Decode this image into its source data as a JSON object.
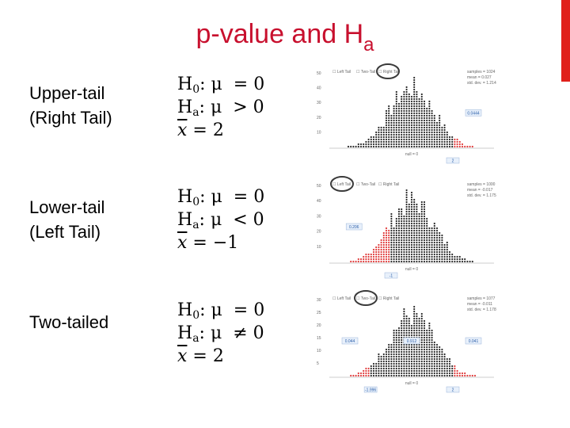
{
  "title": {
    "main": "p-value and H",
    "sub": "a"
  },
  "colors": {
    "title": "#c8102e",
    "accent_bar": "#e0201b",
    "dots_dark": "#2b2b2b",
    "dots_red": "#e03b3b",
    "badge": "#2a5ea8"
  },
  "rows": [
    {
      "label_line1": "Upper-tail",
      "label_line2": "(Right Tail)",
      "h0": {
        "prefix": "H",
        "sub": "0",
        "rel": ": μ  = 0"
      },
      "ha": {
        "prefix": "H",
        "sub": "a",
        "rel": ": μ  > 0"
      },
      "xbar": {
        "rel": " = 2"
      },
      "plot": {
        "options": [
          "Left Tail",
          "Two-Tail",
          "Right Tail"
        ],
        "selected": "Right Tail",
        "stats": [
          "samples = 1024",
          "mean = 0.027",
          "std. dev. = 1.214"
        ],
        "tail": "right",
        "cutoffs": [
          2
        ],
        "cutoff_labels": [
          "2"
        ],
        "pvalue_labels": [
          "0.0444"
        ],
        "yticks": [
          "50",
          "40",
          "30",
          "20",
          "10"
        ],
        "xaxis_label": "null = 0"
      }
    },
    {
      "label_line1": "Lower-tail",
      "label_line2": "(Left Tail)",
      "h0": {
        "prefix": "H",
        "sub": "0",
        "rel": ": μ  = 0"
      },
      "ha": {
        "prefix": "H",
        "sub": "a",
        "rel": ": μ  < 0"
      },
      "xbar": {
        "rel": " = −1"
      },
      "plot": {
        "options": [
          "Left Tail",
          "Two-Tail",
          "Right Tail"
        ],
        "selected": "Left Tail",
        "stats": [
          "samples = 1000",
          "mean = -0.017",
          "std. dev. = 1.175"
        ],
        "tail": "left",
        "cutoffs": [
          -1
        ],
        "cutoff_labels": [
          "-1"
        ],
        "pvalue_labels": [
          "0.206"
        ],
        "yticks": [
          "50",
          "40",
          "30",
          "20",
          "10"
        ],
        "xaxis_label": "null = 0"
      }
    },
    {
      "label_line1": "Two-tailed",
      "label_line2": "",
      "h0": {
        "prefix": "H",
        "sub": "0",
        "rel": ": μ  = 0"
      },
      "ha": {
        "prefix": "H",
        "sub": "a",
        "rel": ": μ  ≠ 0"
      },
      "xbar": {
        "rel": " = 2"
      },
      "plot": {
        "options": [
          "Left Tail",
          "Two-Tail",
          "Right Tail"
        ],
        "selected": "Two-Tail",
        "stats": [
          "samples = 1077",
          "mean = -0.011",
          "std. dev. = 1.178"
        ],
        "tail": "two",
        "cutoffs": [
          -1.996,
          2
        ],
        "cutoff_labels": [
          "-1.996",
          "2"
        ],
        "pvalue_labels": [
          "0.044",
          "0.912",
          "0.041"
        ],
        "yticks": [
          "30",
          "25",
          "20",
          "15",
          "10",
          "5"
        ],
        "xaxis_label": "null = 0"
      }
    }
  ]
}
